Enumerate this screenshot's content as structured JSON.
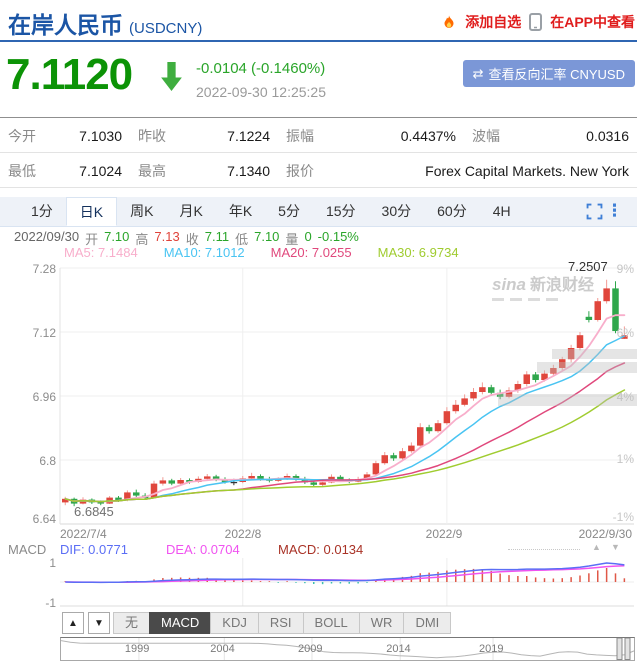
{
  "header": {
    "title": "在岸人民币",
    "code": "(USDCNY)",
    "add_watchlist": "添加自选",
    "view_in_app": "在APP中查看"
  },
  "quote": {
    "price": "7.1120",
    "direction": "down",
    "change": "-0.0104 (-0.1460%)",
    "timestamp": "2022-09-30 12:25:25",
    "reverse_icon": "⇄",
    "reverse_button": "查看反向汇率 CNYUSD"
  },
  "stats": {
    "rows": [
      [
        {
          "label": "今开",
          "value": "7.1030"
        },
        {
          "label": "昨收",
          "value": "7.1224"
        },
        {
          "label": "振幅",
          "value": "0.4437%"
        },
        {
          "label": "波幅",
          "value": "0.0316"
        }
      ],
      [
        {
          "label": "最低",
          "value": "7.1024"
        },
        {
          "label": "最高",
          "value": "7.1340"
        },
        {
          "label": "报价",
          "value": "Forex Capital Markets. New York"
        }
      ]
    ]
  },
  "period_tabs": {
    "items": [
      "1分",
      "日K",
      "周K",
      "月K",
      "年K",
      "5分",
      "15分",
      "30分",
      "60分",
      "4H"
    ],
    "active": "日K"
  },
  "ohlc": {
    "date": "2022/09/30",
    "open_label": "开",
    "open": "7.10",
    "high_label": "高",
    "high": "7.13",
    "close_label": "收",
    "close": "7.11",
    "low_label": "低",
    "low": "7.10",
    "volume_label": "量",
    "volume": "0",
    "change_pct": "-0.15%"
  },
  "ma_legend": [
    {
      "label": "MA5: 7.1484",
      "color": "#f8aecb"
    },
    {
      "label": "MA10: 7.1012",
      "color": "#49c4f2"
    },
    {
      "label": "MA20: 7.0255",
      "color": "#e0487c"
    },
    {
      "label": "MA30: 6.9734",
      "color": "#a0cc30"
    }
  ],
  "annotations": {
    "high": "7.2507",
    "low": "6.6845"
  },
  "watermark": {
    "brand": "sina",
    "text": "新浪财经"
  },
  "macd_info": {
    "label": "MACD",
    "dif": "DIF: 0.0771",
    "dea": "DEA: 0.0704",
    "macd": "MACD: 0.0134"
  },
  "indicator_tabs": {
    "up": "▲",
    "down": "▼",
    "items": [
      "无",
      "MACD",
      "KDJ",
      "RSI",
      "BOLL",
      "WR",
      "DMI"
    ],
    "active": "MACD"
  },
  "chart_data": [
    {
      "type": "candlestick",
      "title": "USDCNY daily candles with MA5/MA10/MA20/MA30",
      "y_ticks_left": [
        "7.28",
        "7.12",
        "6.96",
        "6.8",
        "6.64"
      ],
      "y_ticks_right": [
        "9%",
        "6%",
        "4%",
        "1%",
        "-1%"
      ],
      "y_range": [
        6.64,
        7.28
      ],
      "x_ticks": [
        {
          "label": "2022/7/4",
          "idx": 0,
          "grid": false
        },
        {
          "label": "2022/8",
          "idx": 20,
          "grid": true
        },
        {
          "label": "2022/9",
          "idx": 43,
          "grid": true
        },
        {
          "label": "2022/9/30",
          "idx": 63,
          "grid": false
        }
      ],
      "high_point": 7.2507,
      "low_point": 6.6845,
      "up_color": "#e0463c",
      "up_wick_color": "#f29b94",
      "down_color": "#2fa74c",
      "doji_color": "#333333",
      "ma_periods": [
        {
          "period": 5,
          "color": "#f8aecb",
          "width": 1.8
        },
        {
          "period": 10,
          "color": "#49c4f2",
          "width": 1.5
        },
        {
          "period": 20,
          "color": "#e0487c",
          "width": 1.5
        },
        {
          "period": 30,
          "color": "#a0cc30",
          "width": 1.5
        }
      ],
      "dates": [
        "2022-07-04",
        "2022-07-05",
        "2022-07-06",
        "2022-07-07",
        "2022-07-08",
        "2022-07-11",
        "2022-07-12",
        "2022-07-13",
        "2022-07-14",
        "2022-07-15",
        "2022-07-18",
        "2022-07-19",
        "2022-07-20",
        "2022-07-21",
        "2022-07-22",
        "2022-07-25",
        "2022-07-26",
        "2022-07-27",
        "2022-07-28",
        "2022-07-29",
        "2022-08-01",
        "2022-08-02",
        "2022-08-03",
        "2022-08-04",
        "2022-08-05",
        "2022-08-08",
        "2022-08-09",
        "2022-08-10",
        "2022-08-11",
        "2022-08-12",
        "2022-08-15",
        "2022-08-16",
        "2022-08-17",
        "2022-08-18",
        "2022-08-19",
        "2022-08-22",
        "2022-08-23",
        "2022-08-24",
        "2022-08-25",
        "2022-08-26",
        "2022-08-29",
        "2022-08-30",
        "2022-08-31",
        "2022-09-01",
        "2022-09-02",
        "2022-09-05",
        "2022-09-06",
        "2022-09-07",
        "2022-09-08",
        "2022-09-09",
        "2022-09-13",
        "2022-09-14",
        "2022-09-15",
        "2022-09-16",
        "2022-09-19",
        "2022-09-20",
        "2022-09-21",
        "2022-09-22",
        "2022-09-23",
        "2022-09-26",
        "2022-09-27",
        "2022-09-28",
        "2022-09-29",
        "2022-09-30"
      ],
      "candles": [
        [
          6.694,
          6.708,
          6.687,
          6.703
        ],
        [
          6.703,
          6.706,
          6.6845,
          6.691
        ],
        [
          6.691,
          6.707,
          6.689,
          6.701
        ],
        [
          6.701,
          6.704,
          6.69,
          6.694
        ],
        [
          6.694,
          6.699,
          6.687,
          6.691
        ],
        [
          6.691,
          6.71,
          6.69,
          6.706
        ],
        [
          6.706,
          6.71,
          6.695,
          6.699
        ],
        [
          6.699,
          6.724,
          6.697,
          6.719
        ],
        [
          6.719,
          6.726,
          6.707,
          6.711
        ],
        [
          6.711,
          6.717,
          6.701,
          6.705
        ],
        [
          6.705,
          6.748,
          6.704,
          6.741
        ],
        [
          6.741,
          6.757,
          6.736,
          6.749
        ],
        [
          6.749,
          6.753,
          6.737,
          6.741
        ],
        [
          6.741,
          6.755,
          6.739,
          6.75
        ],
        [
          6.75,
          6.754,
          6.741,
          6.745
        ],
        [
          6.745,
          6.759,
          6.743,
          6.753
        ],
        [
          6.753,
          6.765,
          6.749,
          6.759
        ],
        [
          6.759,
          6.763,
          6.747,
          6.751
        ],
        [
          6.751,
          6.757,
          6.741,
          6.745
        ],
        [
          6.745,
          6.753,
          6.737,
          6.745
        ],
        [
          6.745,
          6.76,
          6.742,
          6.754
        ],
        [
          6.754,
          6.768,
          6.751,
          6.76
        ],
        [
          6.76,
          6.764,
          6.748,
          6.752
        ],
        [
          6.752,
          6.758,
          6.744,
          6.748
        ],
        [
          6.748,
          6.757,
          6.745,
          6.753
        ],
        [
          6.753,
          6.766,
          6.75,
          6.76
        ],
        [
          6.76,
          6.764,
          6.748,
          6.752
        ],
        [
          6.752,
          6.758,
          6.74,
          6.744
        ],
        [
          6.744,
          6.75,
          6.734,
          6.738
        ],
        [
          6.738,
          6.75,
          6.735,
          6.744
        ],
        [
          6.744,
          6.764,
          6.742,
          6.758
        ],
        [
          6.758,
          6.762,
          6.746,
          6.75
        ],
        [
          6.75,
          6.754,
          6.742,
          6.746
        ],
        [
          6.746,
          6.758,
          6.744,
          6.752
        ],
        [
          6.752,
          6.77,
          6.749,
          6.764
        ],
        [
          6.764,
          6.798,
          6.762,
          6.792
        ],
        [
          6.792,
          6.82,
          6.788,
          6.812
        ],
        [
          6.812,
          6.818,
          6.798,
          6.804
        ],
        [
          6.804,
          6.83,
          6.8,
          6.822
        ],
        [
          6.822,
          6.844,
          6.818,
          6.836
        ],
        [
          6.836,
          6.892,
          6.834,
          6.882
        ],
        [
          6.882,
          6.888,
          6.866,
          6.872
        ],
        [
          6.872,
          6.9,
          6.868,
          6.892
        ],
        [
          6.892,
          6.932,
          6.888,
          6.922
        ],
        [
          6.922,
          6.95,
          6.916,
          6.938
        ],
        [
          6.938,
          6.964,
          6.934,
          6.954
        ],
        [
          6.954,
          6.98,
          6.948,
          6.97
        ],
        [
          6.97,
          6.994,
          6.964,
          6.982
        ],
        [
          6.982,
          6.988,
          6.96,
          6.968
        ],
        [
          6.968,
          6.976,
          6.952,
          6.958
        ],
        [
          6.958,
          6.982,
          6.954,
          6.974
        ],
        [
          6.974,
          6.998,
          6.968,
          6.99
        ],
        [
          6.99,
          7.022,
          6.984,
          7.014
        ],
        [
          7.014,
          7.02,
          6.994,
          7.0
        ],
        [
          7.0,
          7.024,
          6.996,
          7.016
        ],
        [
          7.016,
          7.038,
          7.01,
          7.03
        ],
        [
          7.03,
          7.058,
          7.024,
          7.052
        ],
        [
          7.052,
          7.088,
          7.044,
          7.08
        ],
        [
          7.08,
          7.12,
          7.074,
          7.112
        ],
        [
          7.158,
          7.172,
          7.144,
          7.15
        ],
        [
          7.15,
          7.205,
          7.146,
          7.197
        ],
        [
          7.197,
          7.2507,
          7.191,
          7.229
        ],
        [
          7.229,
          7.247,
          7.117,
          7.1224
        ],
        [
          7.103,
          7.134,
          7.1024,
          7.112
        ]
      ],
      "shade_bands": [
        [
          552,
          349,
          85,
          10
        ],
        [
          537,
          362,
          100,
          11
        ],
        [
          498,
          394,
          139,
          12
        ]
      ]
    },
    {
      "type": "line+histogram",
      "title": "MACD(12,26,9) computed from the candles above",
      "y_ticks": [
        "1",
        "-1"
      ],
      "dif": 0.0771,
      "dea": 0.0704,
      "macd": 0.0134,
      "dif_color": "#5b6ef5",
      "dea_color": "#f052f0",
      "pos_color": "#e05848",
      "neg_color": "#3cc0ae"
    },
    {
      "type": "line",
      "title": "Long-term USDCNY navigator 1994-2022",
      "ticks": [
        {
          "label": "1999",
          "pos": 0.136
        },
        {
          "label": "2004",
          "pos": 0.285
        },
        {
          "label": "2009",
          "pos": 0.438
        },
        {
          "label": "2014",
          "pos": 0.592
        },
        {
          "label": "2019",
          "pos": 0.754
        }
      ],
      "values": [
        8.7,
        8.45,
        8.32,
        8.3,
        8.29,
        8.28,
        8.28,
        8.28,
        8.28,
        8.28,
        8.28,
        8.28,
        8.28,
        8.28,
        8.28,
        8.28,
        8.28,
        8.28,
        8.28,
        8.28,
        8.28,
        8.27,
        8.19,
        8.07,
        7.97,
        7.81,
        7.61,
        7.3,
        6.97,
        6.85,
        6.83,
        6.82,
        6.79,
        6.72,
        6.62,
        6.47,
        6.36,
        6.3,
        6.22,
        6.12,
        6.05,
        6.14,
        6.21,
        6.35,
        6.55,
        6.78,
        6.88,
        6.93,
        6.76,
        6.52,
        6.38,
        6.3,
        6.6,
        6.88,
        6.98,
        6.92,
        6.6,
        6.48,
        6.4,
        6.36,
        6.52,
        7.11
      ],
      "y_range": [
        6.0,
        8.8
      ]
    }
  ]
}
